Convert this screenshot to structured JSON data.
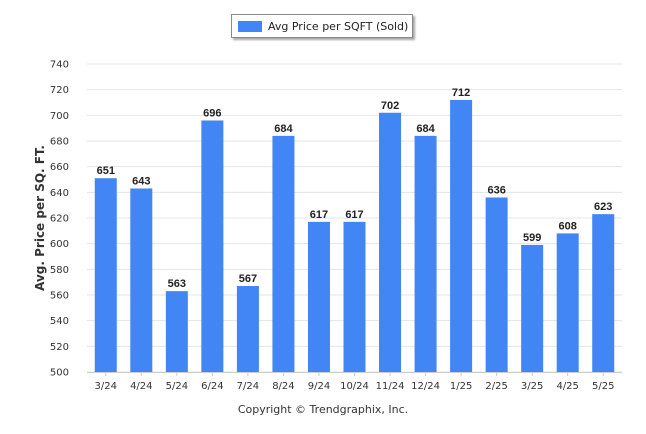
{
  "legend": {
    "label": "Avg Price per SQFT (Sold)"
  },
  "footer": {
    "copyright": "Copyright © Trendgraphix, Inc."
  },
  "colors": {
    "bar": "#4285f4",
    "grid": "#e4e4e4",
    "axis_text": "#333333",
    "value_label": "#222222"
  },
  "chart_data": {
    "type": "bar",
    "title": "",
    "xlabel": "",
    "ylabel": "Avg. Price per SQ. FT.",
    "categories": [
      "3/24",
      "4/24",
      "5/24",
      "6/24",
      "7/24",
      "8/24",
      "9/24",
      "10/24",
      "11/24",
      "12/24",
      "1/25",
      "2/25",
      "3/25",
      "4/25",
      "5/25"
    ],
    "series": [
      {
        "name": "Avg Price per SQFT (Sold)",
        "values": [
          651,
          643,
          563,
          696,
          567,
          684,
          617,
          617,
          702,
          684,
          712,
          636,
          599,
          608,
          623
        ]
      }
    ],
    "ylim": [
      500,
      740
    ],
    "yticks": [
      500,
      520,
      540,
      560,
      580,
      600,
      620,
      640,
      660,
      680,
      700,
      720,
      740
    ],
    "grid": true,
    "legend_position": "top-center",
    "data_labels": true
  }
}
